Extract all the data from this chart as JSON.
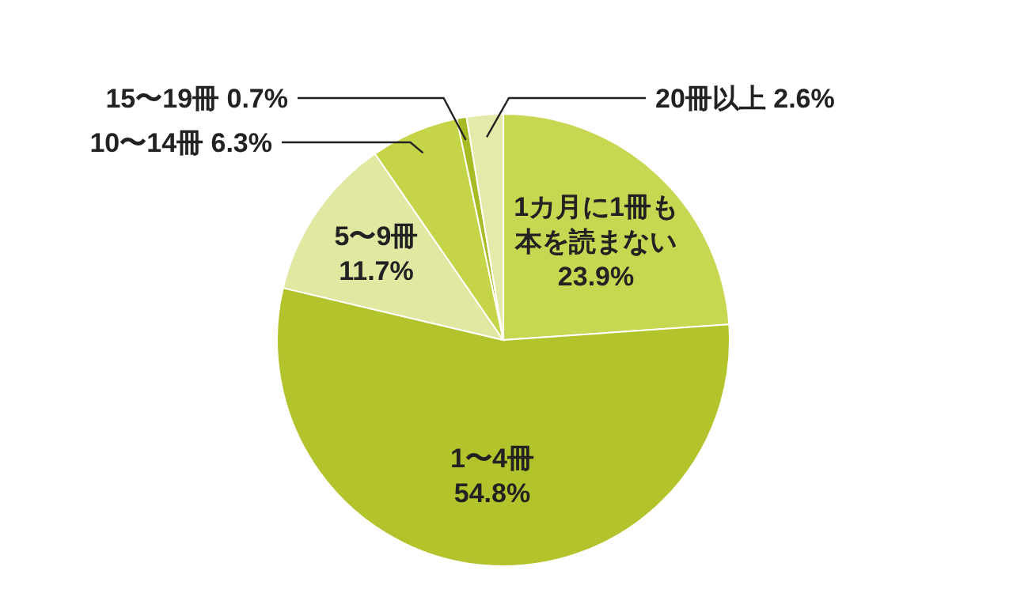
{
  "chart_data": {
    "type": "pie",
    "categories": [
      "1カ月に1冊も本を読まない",
      "1〜4冊",
      "5〜9冊",
      "10〜14冊",
      "15〜19冊",
      "20冊以上"
    ],
    "values": [
      23.9,
      54.8,
      11.7,
      6.3,
      0.7,
      2.6
    ],
    "colors": [
      "#c8d752",
      "#b3c32b",
      "#e0e8a2",
      "#c6d547",
      "#a9bb24",
      "#e4eaa9"
    ],
    "value_labels": [
      "23.9%",
      "54.8%",
      "11.7%",
      "6.3%",
      "0.7%",
      "2.6%"
    ]
  }
}
